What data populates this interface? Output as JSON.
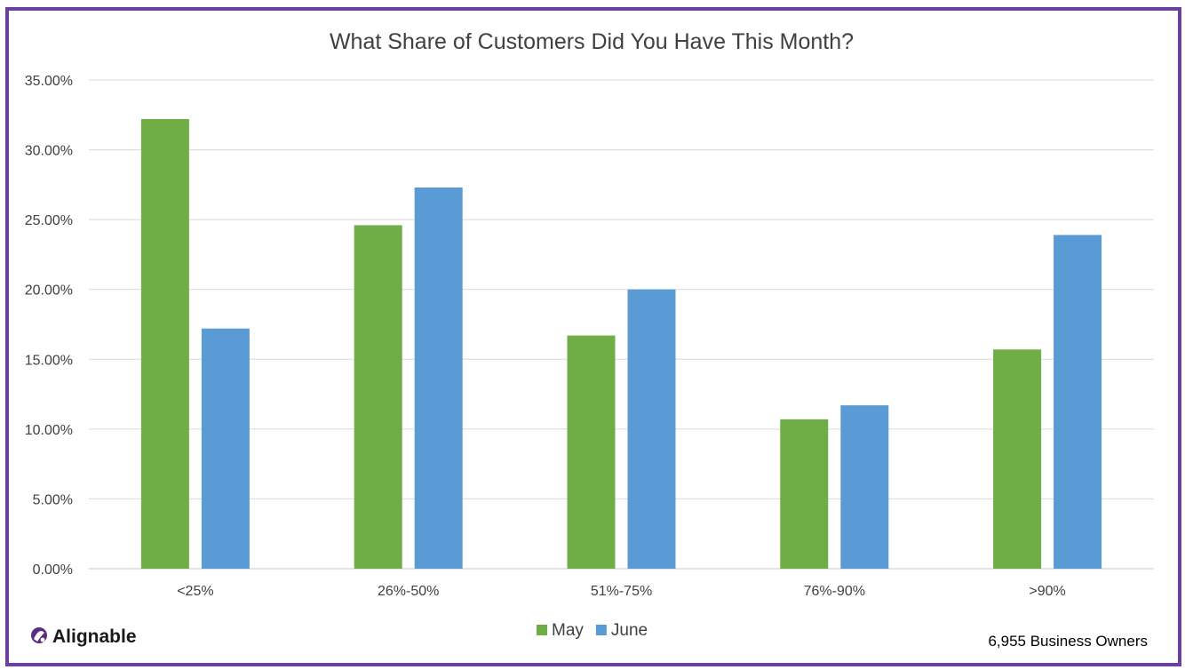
{
  "brand": {
    "name": "Alignable",
    "border_color": "#6b3fa0",
    "logo_icon": "alignable-logo-icon"
  },
  "footnote": "6,955 Business Owners",
  "chart_data": {
    "type": "bar",
    "title": "What Share of Customers Did You Have This Month?",
    "xlabel": "",
    "ylabel": "",
    "categories": [
      "<25%",
      "26%-50%",
      "51%-75%",
      "76%-90%",
      ">90%"
    ],
    "series": [
      {
        "name": "May",
        "color": "#70ad47",
        "values": [
          32.2,
          24.6,
          16.7,
          10.7,
          15.7
        ]
      },
      {
        "name": "June",
        "color": "#5b9bd5",
        "values": [
          17.2,
          27.3,
          20.0,
          11.7,
          23.9
        ]
      }
    ],
    "ylim": [
      0,
      35
    ],
    "y_ticks": [
      "0.00%",
      "5.00%",
      "10.00%",
      "15.00%",
      "20.00%",
      "25.00%",
      "30.00%",
      "35.00%"
    ],
    "grid": true,
    "legend_position": "bottom-center"
  }
}
